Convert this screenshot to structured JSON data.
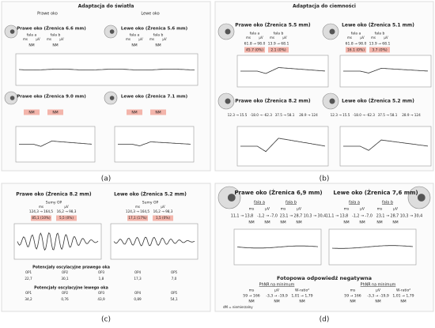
{
  "panels": [
    {
      "label": "(a)",
      "title": "Adaptacja do światła",
      "eyes": [
        "Prawe oko",
        "Lewe oko"
      ],
      "sections": [
        [
          "Prawe oko (Źrenica 6.6 mm)",
          "Lewe oko (Źrenica 5.6 mm)"
        ],
        [
          "Prawe oko (Źrenica 9.0 mm)",
          "Lewe oko (Źrenica 7.1 mm)"
        ]
      ],
      "waves": [
        "fala a",
        "fala b"
      ],
      "units": [
        "ms",
        "µV"
      ],
      "rows": [
        [
          "NM",
          "NM",
          "NM",
          "NM"
        ],
        [
          "NM",
          "NM",
          "NM",
          "NM"
        ]
      ]
    },
    {
      "label": "(b)",
      "title": "Adaptacja do ciemności",
      "sections": [
        [
          "Prawe oko (Źrenica 5.5 mm)",
          "Lewe oko (Źrenica 5.1 mm)"
        ],
        [
          "Prawe oko (Źrenica 8.2 mm)",
          "Lewe oko (Źrenica 5.2 mm)"
        ]
      ],
      "waves": [
        "fala a",
        "fala b"
      ],
      "units": [
        "ms",
        "µV"
      ],
      "rows": [
        [
          "61.8 → 98.0",
          "13.9 → 68.1",
          "61.8 → 98.0",
          "13.9 → 68.1"
        ],
        [
          "45.7 (0%)",
          "2.1 (0%)",
          "16.1 (0%)",
          "3.7 (0%)"
        ],
        [
          "12.3 → 15.5",
          "-18.0 → -62.3",
          "37.5 → 58.1",
          "28.9 → 124"
        ]
      ]
    },
    {
      "label": "(c)",
      "sections": [
        [
          "Prawe oko (Źrenica 8.2 mm)",
          "Lewe oko (Źrenica 5.2 mm)"
        ]
      ],
      "sum": "Sumy OP",
      "units": [
        "ms",
        "µV"
      ],
      "rows": [
        [
          "124,3 → 164,5",
          "16,2 → 98,3",
          "124,3 → 164,5",
          "16,2 → 98,3"
        ],
        [
          "85,1 (10%)",
          "5,5 (0%)",
          "17,1 (17%)",
          "1,5 (0%)"
        ]
      ],
      "op_titles": [
        "Potencjały oscylacyjne prawego oka",
        "Potencjały oscylacyjne lewego oka"
      ],
      "op_headers": [
        "OP1",
        "OP2",
        "OP3",
        "OP4",
        "OP5"
      ],
      "op_rows": [
        [
          "22,7",
          "30,1",
          "1,8",
          "17,3",
          "7,0"
        ],
        [
          "34,2",
          "0,76",
          "43,9",
          "0,89",
          "54,1"
        ]
      ]
    },
    {
      "label": "(d)",
      "sections": [
        [
          "Prawe oko (Źrenica 6,9 mm)",
          "Lewe oko (Źrenica 7,6 mm)"
        ]
      ],
      "waves": [
        "fala a",
        "fala b"
      ],
      "units": [
        "ms",
        "µV"
      ],
      "rows": [
        [
          "11,1 → 13,8",
          "-1,2 → -7,0",
          "23,1 → 28,7",
          "10,3 → 30,4"
        ],
        [
          "NM",
          "NM",
          "NM",
          "NM"
        ]
      ],
      "phnr_title": "Fotopowa odpowiedź negatywna",
      "phnr_sub": "PhNR na minimum",
      "phnr_units": [
        "ms",
        "µV",
        "W-ratio²"
      ],
      "phnr_rows": [
        [
          "59 → 166",
          "-3,3 → -19,9",
          "1,01 → 1,79"
        ],
        [
          "NM",
          "NM",
          "NM"
        ]
      ],
      "note": "dM = niemierzalny"
    }
  ]
}
